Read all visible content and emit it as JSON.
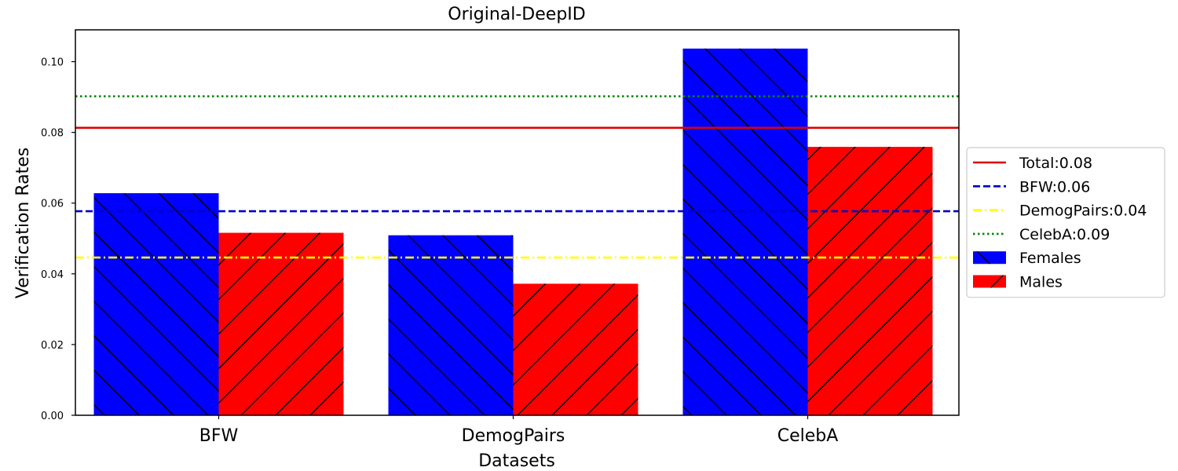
{
  "chart_data": {
    "type": "bar",
    "title": "Original-DeepID",
    "xlabel": "Datasets",
    "ylabel": "Verification Rates",
    "categories": [
      "BFW",
      "DemogPairs",
      "CelebA"
    ],
    "series": [
      {
        "name": "Females",
        "values": [
          0.0628,
          0.0509,
          0.1037
        ],
        "color": "#0000ff",
        "hatch": "backslash"
      },
      {
        "name": "Males",
        "values": [
          0.0516,
          0.0372,
          0.0759
        ],
        "color": "#ff0000",
        "hatch": "slash"
      }
    ],
    "reference_lines": [
      {
        "name": "Total:0.08",
        "value": 0.0813,
        "color": "#dd0000",
        "style": "solid"
      },
      {
        "name": "BFW:0.06",
        "value": 0.0577,
        "color": "#0000cc",
        "style": "dashed"
      },
      {
        "name": "DemogPairs:0.04",
        "value": 0.0446,
        "color": "#ffff00",
        "style": "dashdot"
      },
      {
        "name": "CelebA:0.09",
        "value": 0.0902,
        "color": "#008800",
        "style": "dotted"
      }
    ],
    "ylim": [
      0,
      0.109
    ],
    "yticks": [
      "0.00",
      "0.02",
      "0.04",
      "0.06",
      "0.08",
      "0.10"
    ],
    "ytick_values": [
      0,
      0.02,
      0.04,
      0.06,
      0.08,
      0.1
    ],
    "grid": false,
    "legend_position": "right"
  }
}
